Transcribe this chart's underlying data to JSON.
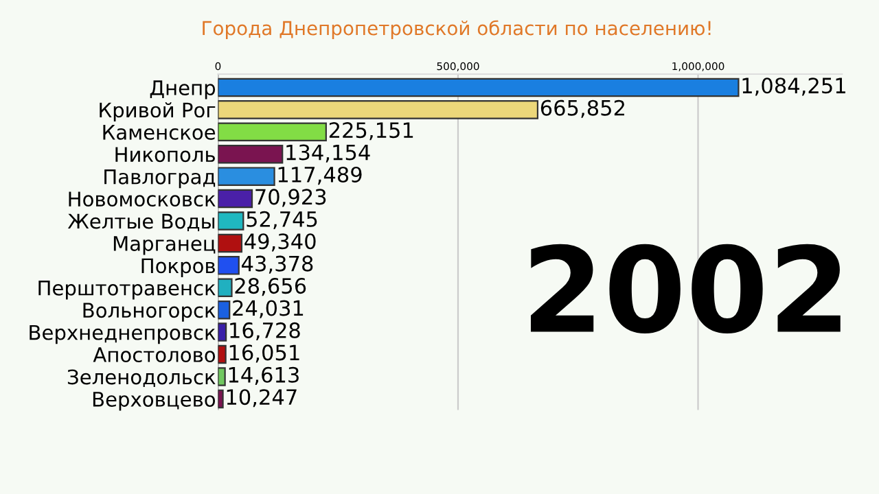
{
  "chart_data": {
    "type": "bar",
    "orientation": "horizontal",
    "title": "Города Днепропетровской области по населению!",
    "categories": [
      "Днепр",
      "Кривой Рог",
      "Каменское",
      "Никополь",
      "Павлоград",
      "Новомосковск",
      "Желтые Воды",
      "Марганец",
      "Покров",
      "Перштотравенск",
      "Вольногорск",
      "Верхнеднепровск",
      "Апостолово",
      "Зеленодольск",
      "Верховцево"
    ],
    "values": [
      1084251,
      665852,
      225151,
      134154,
      117489,
      70923,
      52745,
      49340,
      43378,
      28656,
      24031,
      16728,
      16051,
      14613,
      10247
    ],
    "colors": [
      "#1a7fe0",
      "#ecd77a",
      "#82dd45",
      "#7a1450",
      "#2a8ee0",
      "#4a20a8",
      "#20b8c0",
      "#b01010",
      "#2050f0",
      "#20b0c0",
      "#1a60e0",
      "#3a20a8",
      "#b01010",
      "#70c860",
      "#7a1450"
    ],
    "xlim": [
      0,
      1300000
    ],
    "xticks": [
      {
        "value": 0,
        "label": "0"
      },
      {
        "value": 500000,
        "label": "500,000"
      },
      {
        "value": 1000000,
        "label": "1,000,000"
      }
    ],
    "value_labels": [
      "1,084,251",
      "665,852",
      "225,151",
      "134,154",
      "117,489",
      "70,923",
      "52,745",
      "49,340",
      "43,378",
      "28,656",
      "24,031",
      "16,728",
      "16,051",
      "14,613",
      "10,247"
    ],
    "annotations": [
      "2002"
    ],
    "grid": "x"
  }
}
